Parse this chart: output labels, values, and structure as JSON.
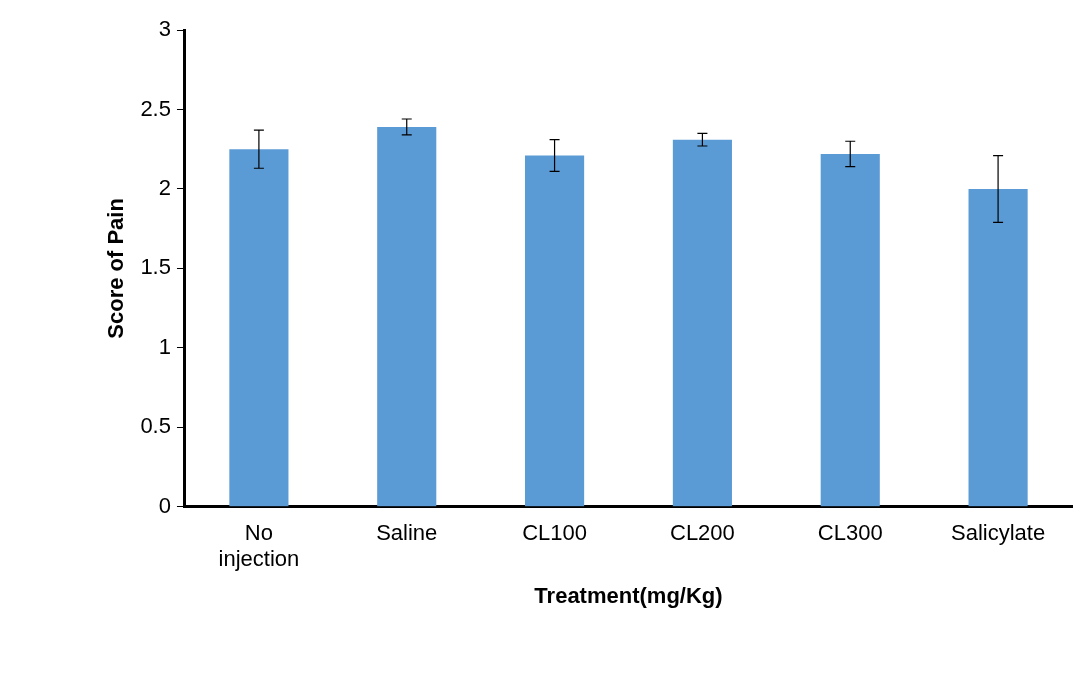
{
  "chart_data": {
    "type": "bar",
    "xlabel": "Treatment(mg/Kg)",
    "ylabel": "Score of Pain",
    "categories": [
      "No injection",
      "Saline",
      "CL100",
      "CL200",
      "CL300",
      "Salicylate"
    ],
    "values": [
      2.25,
      2.39,
      2.21,
      2.31,
      2.22,
      2.0
    ],
    "errors": [
      0.12,
      0.05,
      0.1,
      0.04,
      0.08,
      0.21
    ],
    "color": "#5b9bd5",
    "ylim": [
      0,
      3
    ],
    "yticks": [
      0,
      0.5,
      1,
      1.5,
      2,
      2.5,
      3
    ],
    "grid": false,
    "legend": false
  }
}
